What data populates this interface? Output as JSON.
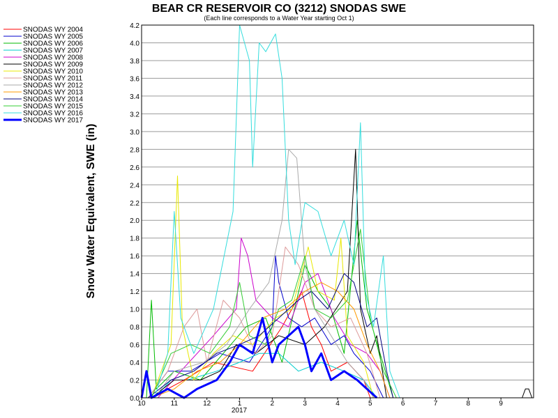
{
  "chart_data": {
    "type": "line",
    "title": "BEAR CR RESERVOIR CO (3212) SNODAS SWE",
    "subtitle": "(Each line corresponds to a Water Year starting Oct 1)",
    "ylabel": "Snow Water Equivalent, SWE (in)",
    "xlabel": "",
    "ylim": [
      0,
      4.2
    ],
    "y_ticks": [
      "0.0",
      "0.2",
      "0.4",
      "0.6",
      "0.8",
      "1.0",
      "1.2",
      "1.4",
      "1.6",
      "1.8",
      "2.0",
      "2.2",
      "2.4",
      "2.6",
      "2.8",
      "3.0",
      "3.2",
      "3.4",
      "3.6",
      "3.8",
      "4.0",
      "4.2"
    ],
    "x_ticks": [
      {
        "month": 10,
        "label": "10"
      },
      {
        "month": 11,
        "label": "11"
      },
      {
        "month": 12,
        "label": "12"
      },
      {
        "month": 13,
        "label": "1"
      },
      {
        "month": 14,
        "label": "2"
      },
      {
        "month": 15,
        "label": "3"
      },
      {
        "month": 16,
        "label": "4"
      },
      {
        "month": 17,
        "label": "5"
      },
      {
        "month": 18,
        "label": "6"
      },
      {
        "month": 19,
        "label": "7"
      },
      {
        "month": 20,
        "label": "8"
      },
      {
        "month": 21,
        "label": "9"
      }
    ],
    "x_year_label": "2017",
    "grid": true,
    "legend_position": "left",
    "series": [
      {
        "name": "SNODAS WY 2004",
        "color": "#ff0000",
        "values": [
          [
            10.3,
            0.0
          ],
          [
            11.3,
            0.2
          ],
          [
            12.2,
            0.4
          ],
          [
            13.4,
            0.3
          ],
          [
            14.3,
            0.8
          ],
          [
            14.6,
            1.0
          ],
          [
            14.9,
            1.2
          ],
          [
            15.2,
            0.8
          ],
          [
            15.5,
            0.6
          ],
          [
            15.8,
            0.3
          ],
          [
            16.3,
            0.4
          ],
          [
            16.8,
            0.2
          ],
          [
            17.0,
            0.0
          ]
        ]
      },
      {
        "name": "SNODAS WY 2005",
        "color": "#0000cc",
        "values": [
          [
            10.2,
            0.0
          ],
          [
            10.8,
            0.3
          ],
          [
            11.5,
            0.3
          ],
          [
            12.4,
            0.5
          ],
          [
            13.3,
            0.4
          ],
          [
            14.0,
            0.8
          ],
          [
            14.1,
            1.6
          ],
          [
            14.2,
            1.3
          ],
          [
            14.5,
            0.9
          ],
          [
            14.9,
            0.8
          ],
          [
            15.3,
            0.9
          ],
          [
            15.8,
            0.6
          ],
          [
            16.2,
            0.7
          ],
          [
            16.5,
            0.5
          ],
          [
            17.0,
            0.3
          ],
          [
            17.4,
            0.0
          ]
        ]
      },
      {
        "name": "SNODAS WY 2006",
        "color": "#00bb00",
        "values": [
          [
            10.15,
            0.0
          ],
          [
            10.3,
            1.1
          ],
          [
            10.45,
            0.1
          ],
          [
            11.0,
            0.3
          ],
          [
            11.8,
            0.2
          ],
          [
            12.5,
            0.5
          ],
          [
            13.2,
            0.8
          ],
          [
            13.8,
            0.9
          ],
          [
            14.3,
            0.4
          ],
          [
            15.0,
            1.5
          ],
          [
            15.4,
            1.2
          ],
          [
            15.8,
            1.0
          ],
          [
            16.2,
            0.5
          ],
          [
            16.6,
            2.0
          ],
          [
            16.9,
            1.0
          ],
          [
            17.3,
            0.5
          ],
          [
            17.7,
            0.0
          ]
        ]
      },
      {
        "name": "SNODAS WY 2007",
        "color": "#00cccc",
        "values": [
          [
            10.4,
            0.0
          ],
          [
            10.9,
            0.2
          ],
          [
            11.4,
            0.2
          ],
          [
            12.3,
            0.3
          ],
          [
            13.0,
            0.4
          ],
          [
            13.6,
            0.5
          ],
          [
            14.2,
            0.5
          ],
          [
            14.8,
            0.3
          ],
          [
            15.5,
            0.4
          ],
          [
            16.2,
            0.3
          ],
          [
            16.8,
            0.2
          ],
          [
            17.2,
            0.0
          ]
        ]
      },
      {
        "name": "SNODAS WY 2008",
        "color": "#cc00cc",
        "values": [
          [
            10.5,
            0.0
          ],
          [
            11.2,
            0.3
          ],
          [
            12.2,
            0.7
          ],
          [
            12.9,
            1.0
          ],
          [
            13.05,
            1.8
          ],
          [
            13.25,
            1.6
          ],
          [
            13.5,
            1.1
          ],
          [
            14.0,
            0.9
          ],
          [
            14.5,
            0.8
          ],
          [
            15.0,
            1.3
          ],
          [
            15.4,
            1.4
          ],
          [
            15.9,
            0.9
          ],
          [
            16.4,
            0.6
          ],
          [
            16.9,
            0.5
          ],
          [
            17.3,
            0.3
          ],
          [
            17.6,
            0.0
          ]
        ]
      },
      {
        "name": "SNODAS WY 2009",
        "color": "#000000",
        "values": [
          [
            10.3,
            0.0
          ],
          [
            11.0,
            0.2
          ],
          [
            11.8,
            0.2
          ],
          [
            12.4,
            0.3
          ],
          [
            12.9,
            0.6
          ],
          [
            13.5,
            0.5
          ],
          [
            14.2,
            0.7
          ],
          [
            15.0,
            0.6
          ],
          [
            15.6,
            0.8
          ],
          [
            16.3,
            1.2
          ],
          [
            16.55,
            2.8
          ],
          [
            16.7,
            1.0
          ],
          [
            17.0,
            0.5
          ],
          [
            17.2,
            0.7
          ],
          [
            17.5,
            0.0
          ]
        ]
      },
      {
        "name": "SNODAS WY 2010",
        "color": "#e8e800",
        "values": [
          [
            10.3,
            0.0
          ],
          [
            10.9,
            0.6
          ],
          [
            11.1,
            2.5
          ],
          [
            11.25,
            0.8
          ],
          [
            11.6,
            0.2
          ],
          [
            12.2,
            0.5
          ],
          [
            12.8,
            0.7
          ],
          [
            13.4,
            0.6
          ],
          [
            14.1,
            0.9
          ],
          [
            14.6,
            1.0
          ],
          [
            15.1,
            1.7
          ],
          [
            15.4,
            1.2
          ],
          [
            15.9,
            1.1
          ],
          [
            16.1,
            1.8
          ],
          [
            16.3,
            0.7
          ],
          [
            16.8,
            0.4
          ],
          [
            17.1,
            0.0
          ]
        ]
      },
      {
        "name": "SNODAS WY 2011",
        "color": "#dd9999",
        "values": [
          [
            10.2,
            0.0
          ],
          [
            10.8,
            0.3
          ],
          [
            11.3,
            0.8
          ],
          [
            11.7,
            1.0
          ],
          [
            12.0,
            0.4
          ],
          [
            12.5,
            1.1
          ],
          [
            13.0,
            0.9
          ],
          [
            13.5,
            0.5
          ],
          [
            14.0,
            0.7
          ],
          [
            14.4,
            1.7
          ],
          [
            14.8,
            1.5
          ],
          [
            15.3,
            1.0
          ],
          [
            15.8,
            0.8
          ],
          [
            16.4,
            0.9
          ],
          [
            16.9,
            0.5
          ],
          [
            17.3,
            0.0
          ]
        ]
      },
      {
        "name": "SNODAS WY 2012",
        "color": "#aaaaaa",
        "values": [
          [
            10.4,
            0.0
          ],
          [
            11.0,
            0.3
          ],
          [
            11.9,
            0.4
          ],
          [
            12.6,
            0.6
          ],
          [
            13.3,
            1.0
          ],
          [
            13.9,
            1.3
          ],
          [
            14.3,
            2.0
          ],
          [
            14.5,
            2.8
          ],
          [
            14.75,
            2.7
          ],
          [
            15.0,
            1.5
          ],
          [
            15.3,
            1.0
          ],
          [
            15.8,
            0.7
          ],
          [
            16.3,
            0.4
          ],
          [
            16.8,
            0.2
          ],
          [
            17.1,
            0.0
          ]
        ]
      },
      {
        "name": "SNODAS WY 2013",
        "color": "#ff9900",
        "values": [
          [
            10.3,
            0.0
          ],
          [
            11.0,
            0.1
          ],
          [
            11.7,
            0.3
          ],
          [
            12.4,
            0.4
          ],
          [
            13.0,
            0.6
          ],
          [
            13.7,
            0.9
          ],
          [
            14.4,
            1.0
          ],
          [
            15.0,
            1.2
          ],
          [
            15.5,
            1.3
          ],
          [
            16.0,
            1.2
          ],
          [
            16.5,
            1.0
          ],
          [
            16.9,
            0.6
          ],
          [
            17.3,
            0.3
          ],
          [
            17.6,
            0.0
          ]
        ]
      },
      {
        "name": "SNODAS WY 2014",
        "color": "#000080",
        "values": [
          [
            10.2,
            0.0
          ],
          [
            10.9,
            0.2
          ],
          [
            11.6,
            0.3
          ],
          [
            12.3,
            0.5
          ],
          [
            13.0,
            0.6
          ],
          [
            13.6,
            0.7
          ],
          [
            14.2,
            0.9
          ],
          [
            14.8,
            1.1
          ],
          [
            15.2,
            1.2
          ],
          [
            15.7,
            1.0
          ],
          [
            16.2,
            1.4
          ],
          [
            16.5,
            1.3
          ],
          [
            16.9,
            0.8
          ],
          [
            17.2,
            0.9
          ],
          [
            17.5,
            0.3
          ],
          [
            17.7,
            0.0
          ]
        ]
      },
      {
        "name": "SNODAS WY 2015",
        "color": "#33cc33",
        "values": [
          [
            10.3,
            0.0
          ],
          [
            10.9,
            0.5
          ],
          [
            11.5,
            0.6
          ],
          [
            12.1,
            0.5
          ],
          [
            12.7,
            0.8
          ],
          [
            13.0,
            1.3
          ],
          [
            13.3,
            0.7
          ],
          [
            13.8,
            0.6
          ],
          [
            14.2,
            1.0
          ],
          [
            14.6,
            1.1
          ],
          [
            15.0,
            1.6
          ],
          [
            15.3,
            1.0
          ],
          [
            15.8,
            0.9
          ],
          [
            16.3,
            1.1
          ],
          [
            16.7,
            1.9
          ],
          [
            17.0,
            0.9
          ],
          [
            17.4,
            0.3
          ],
          [
            17.8,
            0.0
          ]
        ]
      },
      {
        "name": "SNODAS WY 2016",
        "color": "#33dddd",
        "values": [
          [
            10.4,
            0.0
          ],
          [
            10.8,
            0.5
          ],
          [
            11.0,
            2.1
          ],
          [
            11.2,
            0.9
          ],
          [
            11.6,
            0.5
          ],
          [
            12.2,
            1.0
          ],
          [
            12.8,
            2.1
          ],
          [
            13.0,
            4.2
          ],
          [
            13.3,
            3.8
          ],
          [
            13.4,
            2.6
          ],
          [
            13.6,
            4.0
          ],
          [
            13.8,
            3.9
          ],
          [
            14.1,
            4.1
          ],
          [
            14.3,
            3.6
          ],
          [
            14.5,
            2.0
          ],
          [
            14.7,
            1.5
          ],
          [
            15.0,
            2.2
          ],
          [
            15.4,
            2.1
          ],
          [
            15.8,
            1.6
          ],
          [
            16.2,
            2.0
          ],
          [
            16.5,
            1.5
          ],
          [
            16.7,
            3.1
          ],
          [
            16.85,
            1.2
          ],
          [
            17.1,
            0.8
          ],
          [
            17.4,
            1.6
          ],
          [
            17.6,
            0.3
          ],
          [
            17.9,
            0.0
          ]
        ]
      },
      {
        "name": "SNODAS WY 2017",
        "color": "#0000ff",
        "values": [
          [
            10.0,
            0.0
          ],
          [
            10.15,
            0.3
          ],
          [
            10.3,
            0.0
          ],
          [
            10.8,
            0.1
          ],
          [
            11.3,
            0.0
          ],
          [
            11.7,
            0.1
          ],
          [
            12.3,
            0.2
          ],
          [
            12.7,
            0.4
          ],
          [
            13.0,
            0.6
          ],
          [
            13.4,
            0.5
          ],
          [
            13.7,
            0.9
          ],
          [
            14.0,
            0.4
          ],
          [
            14.2,
            0.6
          ],
          [
            14.5,
            0.7
          ],
          [
            14.8,
            0.8
          ],
          [
            15.0,
            0.6
          ],
          [
            15.2,
            0.3
          ],
          [
            15.5,
            0.5
          ],
          [
            15.8,
            0.2
          ],
          [
            16.2,
            0.3
          ],
          [
            16.6,
            0.2
          ],
          [
            16.9,
            0.1
          ],
          [
            17.2,
            0.0
          ]
        ]
      }
    ],
    "late_blip": {
      "series": "SNODAS WY 2016",
      "values": [
        [
          21.65,
          0.0
        ],
        [
          21.75,
          0.1
        ],
        [
          21.85,
          0.1
        ],
        [
          21.95,
          0.0
        ]
      ]
    }
  }
}
